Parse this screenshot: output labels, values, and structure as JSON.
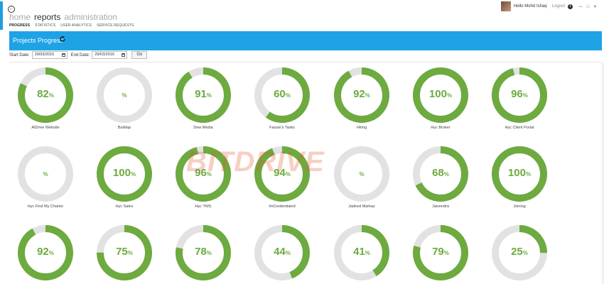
{
  "nav": {
    "top": [
      {
        "label": "home",
        "active": false
      },
      {
        "label": "reports",
        "active": true
      },
      {
        "label": "administration",
        "active": false
      }
    ],
    "sub": [
      {
        "label": "PROGRESS",
        "active": true
      },
      {
        "label": "STATISTICS",
        "active": false
      },
      {
        "label": "USER ANALYTICS",
        "active": false
      },
      {
        "label": "SERVICE REQUESTS",
        "active": false
      }
    ]
  },
  "user": {
    "greeting": "Hello Mohd Ishaq",
    "logout": "Logout",
    "info_icon": "info-icon"
  },
  "banner": {
    "title": "Projects Progress",
    "refresh_icon": "refresh-icon",
    "color": "#1ea3e6"
  },
  "filter": {
    "start_label": "Start Date:",
    "start_value": "29/03/2015",
    "end_label": "End Date:",
    "end_value": "29/03/2016",
    "go_label": "Go"
  },
  "colors": {
    "progress": "#6daa3f",
    "track": "#e2e2e2"
  },
  "watermark": "BITDRIVE",
  "projects": [
    {
      "name": "AtDrive Website",
      "percent": 82
    },
    {
      "name": "Buildap",
      "percent": null
    },
    {
      "name": "Dew Media",
      "percent": 91
    },
    {
      "name": "Faizan's Tasks",
      "percent": 60
    },
    {
      "name": "Hiring",
      "percent": 92
    },
    {
      "name": "Hyc Broker",
      "percent": 100
    },
    {
      "name": "Hyc Client Portal",
      "percent": 96
    },
    {
      "name": "Hyc Find My Charter",
      "percent": null
    },
    {
      "name": "Hyc Sales",
      "percent": 100
    },
    {
      "name": "Hyc YMS",
      "percent": 96
    },
    {
      "name": "ImCredentialed",
      "percent": 94
    },
    {
      "name": "Jadeed Markaz",
      "percent": null
    },
    {
      "name": "Jaivendra",
      "percent": 68
    },
    {
      "name": "Joining",
      "percent": 100
    },
    {
      "name": "",
      "percent": 92
    },
    {
      "name": "",
      "percent": 75
    },
    {
      "name": "",
      "percent": 78
    },
    {
      "name": "",
      "percent": 44
    },
    {
      "name": "",
      "percent": 41
    },
    {
      "name": "",
      "percent": 79
    },
    {
      "name": "",
      "percent": 25
    }
  ]
}
